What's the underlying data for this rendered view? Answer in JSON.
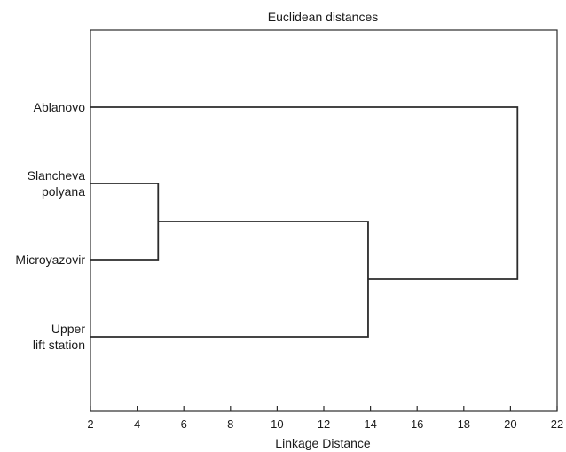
{
  "chart_data": {
    "type": "dendrogram",
    "title": "Euclidean distances",
    "xlabel": "Linkage Distance",
    "ylabel": "",
    "xlim": [
      2,
      22
    ],
    "xticks": [
      2,
      4,
      6,
      8,
      10,
      12,
      14,
      16,
      18,
      20,
      22
    ],
    "grid": false,
    "leaves": [
      {
        "id": "ablanovo",
        "lines": [
          "Ablanovo"
        ]
      },
      {
        "id": "slancheva",
        "lines": [
          "Slancheva",
          "polyana"
        ]
      },
      {
        "id": "microyazovir",
        "lines": [
          "Microyazovir"
        ]
      },
      {
        "id": "upper",
        "lines": [
          "Upper",
          "lift station"
        ]
      }
    ],
    "merges": [
      {
        "id": "m1",
        "children": [
          "slancheva",
          "microyazovir"
        ],
        "distance": 4.9
      },
      {
        "id": "m2",
        "children": [
          "m1",
          "upper"
        ],
        "distance": 13.9
      },
      {
        "id": "m3",
        "children": [
          "ablanovo",
          "m2"
        ],
        "distance": 20.3
      }
    ]
  }
}
